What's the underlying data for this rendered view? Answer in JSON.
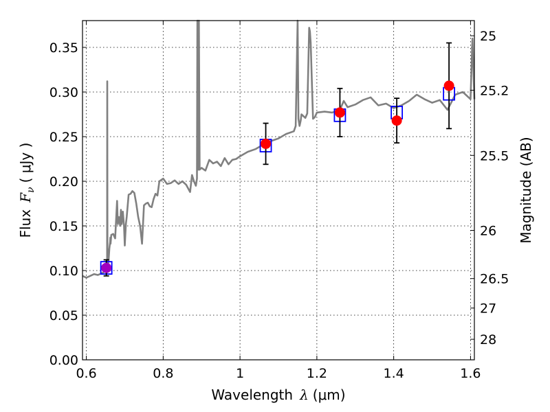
{
  "chart_data": {
    "type": "line",
    "xlabel_prefix": "Wavelength",
    "xlabel_symbol": "λ",
    "xlabel_unit": "(μm)",
    "ylabel_prefix": "Flux",
    "ylabel_symbol": "F",
    "ylabel_subscript": "ν",
    "ylabel_unit": "( μJy )",
    "y2label": "Magnitude (AB)",
    "xlim": [
      0.59,
      1.61
    ],
    "ylim": [
      0.0,
      0.38
    ],
    "grid": true,
    "x_ticks": [
      0.6,
      0.8,
      1.0,
      1.2,
      1.4,
      1.6
    ],
    "x_tick_labels": [
      "0.6",
      "0.8",
      "1",
      "1.2",
      "1.4",
      "1.6"
    ],
    "y_ticks": [
      0.0,
      0.05,
      0.1,
      0.15,
      0.2,
      0.25,
      0.3,
      0.35
    ],
    "y_tick_labels": [
      "0.00",
      "0.05",
      "0.10",
      "0.15",
      "0.20",
      "0.25",
      "0.30",
      "0.35"
    ],
    "mag_ticks": [
      {
        "label": "25",
        "flux": 0.363
      },
      {
        "label": "25.2",
        "flux": 0.302
      },
      {
        "label": "25.5",
        "flux": 0.229
      },
      {
        "label": "26",
        "flux": 0.145
      },
      {
        "label": "26.5",
        "flux": 0.091
      },
      {
        "label": "27",
        "flux": 0.058
      },
      {
        "label": "28",
        "flux": 0.023
      }
    ],
    "colors": {
      "spectrum": "#808080",
      "model_box": "#0000ff",
      "observed": "#ff0000",
      "first_point": "#a000c0",
      "errorbar": "#000000"
    },
    "series": [
      {
        "name": "model spectrum",
        "style": "line",
        "x": [
          0.59,
          0.6,
          0.61,
          0.62,
          0.63,
          0.64,
          0.645,
          0.65,
          0.652,
          0.654,
          0.6545,
          0.655,
          0.656,
          0.657,
          0.658,
          0.66,
          0.662,
          0.6625,
          0.663,
          0.665,
          0.67,
          0.675,
          0.68,
          0.682,
          0.685,
          0.688,
          0.69,
          0.692,
          0.695,
          0.698,
          0.7,
          0.703,
          0.705,
          0.71,
          0.715,
          0.72,
          0.725,
          0.73,
          0.735,
          0.74,
          0.745,
          0.75,
          0.755,
          0.76,
          0.765,
          0.77,
          0.775,
          0.78,
          0.785,
          0.79,
          0.8,
          0.81,
          0.82,
          0.83,
          0.84,
          0.85,
          0.86,
          0.87,
          0.875,
          0.88,
          0.885,
          0.888,
          0.889,
          0.892,
          0.893,
          0.895,
          0.9,
          0.91,
          0.92,
          0.93,
          0.94,
          0.95,
          0.96,
          0.97,
          0.98,
          0.99,
          1.0,
          1.02,
          1.04,
          1.06,
          1.08,
          1.1,
          1.12,
          1.14,
          1.145,
          1.15,
          1.152,
          1.155,
          1.158,
          1.16,
          1.17,
          1.175,
          1.18,
          1.182,
          1.184,
          1.19,
          1.195,
          1.2,
          1.22,
          1.24,
          1.26,
          1.27,
          1.28,
          1.3,
          1.32,
          1.34,
          1.36,
          1.38,
          1.4,
          1.42,
          1.44,
          1.46,
          1.48,
          1.5,
          1.52,
          1.54,
          1.56,
          1.58,
          1.6,
          1.605,
          1.61
        ],
        "y": [
          0.094,
          0.092,
          0.094,
          0.096,
          0.095,
          0.097,
          0.098,
          0.104,
          0.1,
          0.098,
          0.312,
          0.125,
          0.118,
          0.108,
          0.112,
          0.125,
          0.132,
          0.137,
          0.13,
          0.14,
          0.141,
          0.136,
          0.178,
          0.152,
          0.16,
          0.15,
          0.168,
          0.152,
          0.166,
          0.15,
          0.128,
          0.152,
          0.16,
          0.185,
          0.186,
          0.189,
          0.187,
          0.175,
          0.16,
          0.15,
          0.13,
          0.173,
          0.175,
          0.176,
          0.172,
          0.171,
          0.18,
          0.186,
          0.184,
          0.2,
          0.203,
          0.197,
          0.198,
          0.201,
          0.197,
          0.2,
          0.196,
          0.188,
          0.207,
          0.2,
          0.195,
          0.203,
          0.38,
          0.213,
          0.38,
          0.213,
          0.215,
          0.212,
          0.224,
          0.22,
          0.222,
          0.217,
          0.226,
          0.219,
          0.224,
          0.225,
          0.228,
          0.233,
          0.236,
          0.241,
          0.245,
          0.248,
          0.253,
          0.256,
          0.262,
          0.38,
          0.27,
          0.262,
          0.268,
          0.275,
          0.271,
          0.276,
          0.372,
          0.368,
          0.355,
          0.27,
          0.272,
          0.277,
          0.278,
          0.277,
          0.28,
          0.29,
          0.283,
          0.286,
          0.291,
          0.294,
          0.285,
          0.287,
          0.282,
          0.285,
          0.29,
          0.297,
          0.292,
          0.288,
          0.291,
          0.28,
          0.297,
          0.3,
          0.292,
          0.36,
          0.292
        ]
      },
      {
        "name": "model photometry",
        "style": "square",
        "x": [
          0.652,
          1.067,
          1.26,
          1.408,
          1.544
        ],
        "y": [
          0.103,
          0.24,
          0.274,
          0.277,
          0.298
        ]
      },
      {
        "name": "observed photometry",
        "style": "points-with-errorbars",
        "x": [
          0.652,
          1.067,
          1.26,
          1.408,
          1.544
        ],
        "y": [
          0.103,
          0.242,
          0.277,
          0.268,
          0.307
        ],
        "yerr": [
          0.009,
          0.023,
          0.027,
          0.025,
          0.048
        ]
      }
    ]
  }
}
